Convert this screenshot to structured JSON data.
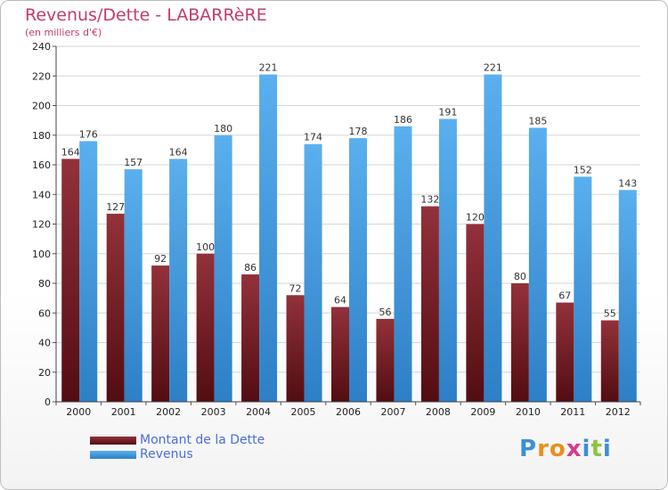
{
  "title": "Revenus/Dette - LABARRèRE",
  "subtitle": "(en milliers d'€)",
  "logo": "Proxiti",
  "colors": {
    "debt": "#7a1c22",
    "revenue": "#4aa3e6",
    "title": "#c43b6e",
    "legend_text": "#4a6fd6",
    "grid": "#d6d6d6"
  },
  "chart_data": {
    "type": "bar",
    "categories": [
      "2000",
      "2001",
      "2002",
      "2003",
      "2004",
      "2005",
      "2006",
      "2007",
      "2008",
      "2009",
      "2010",
      "2011",
      "2012"
    ],
    "series": [
      {
        "name": "Montant de la Dette",
        "values": [
          164,
          127,
          92,
          100,
          86,
          72,
          64,
          56,
          132,
          120,
          80,
          67,
          55
        ]
      },
      {
        "name": "Revenus",
        "values": [
          176,
          157,
          164,
          180,
          221,
          174,
          178,
          186,
          191,
          221,
          185,
          152,
          143
        ]
      }
    ],
    "ylim": [
      0,
      240
    ],
    "yticks": [
      0,
      20,
      40,
      60,
      80,
      100,
      120,
      140,
      160,
      180,
      200,
      220,
      240
    ],
    "grid": true,
    "legend": "bottom-left"
  }
}
